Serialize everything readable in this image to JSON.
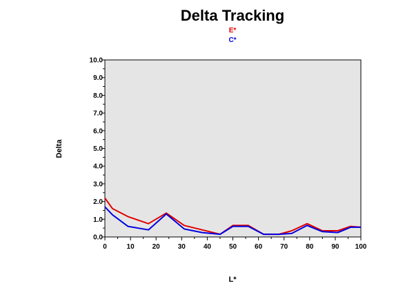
{
  "chart_data": {
    "type": "line",
    "title": "Delta Tracking",
    "xlabel": "L*",
    "ylabel": "Delta",
    "xlim": [
      0,
      100
    ],
    "ylim": [
      0,
      10
    ],
    "x_ticks": [
      "0",
      "10",
      "20",
      "30",
      "40",
      "50",
      "60",
      "70",
      "80",
      "90",
      "100"
    ],
    "y_ticks": [
      "0.0",
      "1.0",
      "2.0",
      "3.0",
      "4.0",
      "5.0",
      "6.0",
      "7.0",
      "8.0",
      "9.0",
      "10.0"
    ],
    "grid": false,
    "legend_position": "top-center",
    "plot_background": "#e5e5e5",
    "series": [
      {
        "name": "E*",
        "color": "#e00000",
        "x": [
          0,
          3,
          9,
          17,
          24,
          31,
          38,
          45,
          50,
          56,
          62,
          68,
          73,
          79,
          85,
          91,
          96,
          100
        ],
        "y": [
          2.2,
          1.6,
          1.15,
          0.75,
          1.35,
          0.65,
          0.4,
          0.15,
          0.65,
          0.65,
          0.15,
          0.15,
          0.35,
          0.75,
          0.35,
          0.35,
          0.6,
          0.55
        ]
      },
      {
        "name": "C*",
        "color": "#0000e0",
        "x": [
          0,
          3,
          9,
          17,
          24,
          31,
          38,
          45,
          50,
          56,
          62,
          68,
          73,
          79,
          85,
          91,
          96,
          100
        ],
        "y": [
          1.7,
          1.25,
          0.6,
          0.4,
          1.3,
          0.45,
          0.25,
          0.15,
          0.6,
          0.6,
          0.15,
          0.15,
          0.2,
          0.65,
          0.3,
          0.25,
          0.55,
          0.55
        ]
      }
    ]
  }
}
